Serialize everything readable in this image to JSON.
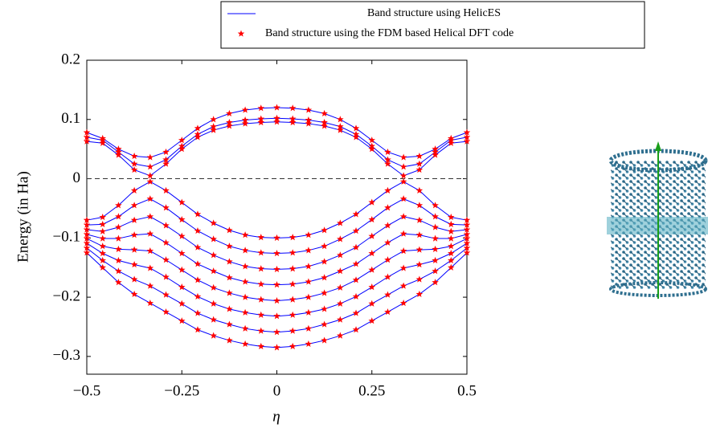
{
  "chart_data": {
    "type": "line",
    "xlabel": "η",
    "ylabel": "Energy (in Ha)",
    "xlim": [
      -0.5,
      0.5
    ],
    "ylim": [
      -0.33,
      0.2
    ],
    "xticks": [
      {
        "value": -0.5,
        "label": "−0.5"
      },
      {
        "value": -0.25,
        "label": "−0.25"
      },
      0,
      0.25,
      0.5
    ],
    "yticks": [
      0.2,
      0.1,
      0,
      {
        "value": -0.1,
        "label": "−0.1"
      },
      {
        "value": -0.2,
        "label": "−0.2"
      },
      {
        "value": -0.3,
        "label": "−0.3"
      }
    ],
    "x": [
      -0.5,
      -0.4583,
      -0.4167,
      -0.375,
      -0.3333,
      -0.2917,
      -0.25,
      -0.2083,
      -0.1667,
      -0.125,
      -0.0833,
      -0.0417,
      0,
      0.0417,
      0.0833,
      0.125,
      0.1667,
      0.2083,
      0.25,
      0.2917,
      0.3333,
      0.375,
      0.4167,
      0.4583,
      0.5
    ],
    "series": [
      {
        "name": "Band structure using HelicES",
        "color": "#0000ff",
        "style": "line",
        "bands": [
          [
            0.078,
            0.068,
            0.05,
            0.038,
            0.036,
            0.045,
            0.065,
            0.085,
            0.1,
            0.11,
            0.116,
            0.119,
            0.12,
            0.119,
            0.116,
            0.11,
            0.1,
            0.085,
            0.065,
            0.045,
            0.036,
            0.038,
            0.05,
            0.068,
            0.078
          ],
          [
            0.07,
            0.065,
            0.045,
            0.025,
            0.02,
            0.032,
            0.055,
            0.075,
            0.088,
            0.095,
            0.099,
            0.101,
            0.102,
            0.101,
            0.099,
            0.095,
            0.088,
            0.075,
            0.055,
            0.032,
            0.02,
            0.025,
            0.045,
            0.065,
            0.07
          ],
          [
            0.063,
            0.06,
            0.04,
            0.015,
            0.005,
            0.025,
            0.05,
            0.07,
            0.082,
            0.089,
            0.093,
            0.095,
            0.096,
            0.095,
            0.093,
            0.089,
            0.082,
            0.07,
            0.05,
            0.025,
            0.005,
            0.015,
            0.04,
            0.06,
            0.063
          ],
          [
            -0.07,
            -0.065,
            -0.045,
            -0.02,
            -0.005,
            -0.02,
            -0.04,
            -0.06,
            -0.075,
            -0.087,
            -0.095,
            -0.099,
            -0.1,
            -0.099,
            -0.095,
            -0.087,
            -0.075,
            -0.06,
            -0.04,
            -0.02,
            -0.005,
            -0.02,
            -0.045,
            -0.065,
            -0.07
          ],
          [
            -0.078,
            -0.077,
            -0.064,
            -0.045,
            -0.034,
            -0.049,
            -0.069,
            -0.088,
            -0.102,
            -0.114,
            -0.121,
            -0.125,
            -0.126,
            -0.125,
            -0.121,
            -0.114,
            -0.102,
            -0.088,
            -0.069,
            -0.049,
            -0.034,
            -0.045,
            -0.064,
            -0.077,
            -0.078
          ],
          [
            -0.086,
            -0.089,
            -0.082,
            -0.07,
            -0.064,
            -0.079,
            -0.097,
            -0.116,
            -0.129,
            -0.14,
            -0.148,
            -0.152,
            -0.153,
            -0.152,
            -0.148,
            -0.14,
            -0.129,
            -0.116,
            -0.097,
            -0.079,
            -0.064,
            -0.07,
            -0.082,
            -0.089,
            -0.086
          ],
          [
            -0.094,
            -0.101,
            -0.101,
            -0.095,
            -0.093,
            -0.108,
            -0.126,
            -0.144,
            -0.156,
            -0.167,
            -0.174,
            -0.178,
            -0.179,
            -0.178,
            -0.174,
            -0.167,
            -0.156,
            -0.144,
            -0.126,
            -0.108,
            -0.093,
            -0.095,
            -0.101,
            -0.101,
            -0.094
          ],
          [
            -0.101,
            -0.114,
            -0.119,
            -0.12,
            -0.122,
            -0.137,
            -0.154,
            -0.171,
            -0.184,
            -0.193,
            -0.2,
            -0.204,
            -0.206,
            -0.204,
            -0.2,
            -0.193,
            -0.184,
            -0.171,
            -0.154,
            -0.137,
            -0.122,
            -0.12,
            -0.119,
            -0.114,
            -0.101
          ],
          [
            -0.109,
            -0.126,
            -0.138,
            -0.145,
            -0.151,
            -0.166,
            -0.183,
            -0.199,
            -0.211,
            -0.22,
            -0.226,
            -0.23,
            -0.232,
            -0.23,
            -0.226,
            -0.22,
            -0.211,
            -0.199,
            -0.183,
            -0.166,
            -0.151,
            -0.145,
            -0.138,
            -0.126,
            -0.109
          ],
          [
            -0.117,
            -0.138,
            -0.156,
            -0.17,
            -0.181,
            -0.196,
            -0.211,
            -0.227,
            -0.238,
            -0.246,
            -0.253,
            -0.257,
            -0.259,
            -0.257,
            -0.253,
            -0.246,
            -0.238,
            -0.227,
            -0.211,
            -0.196,
            -0.181,
            -0.17,
            -0.156,
            -0.138,
            -0.117
          ],
          [
            -0.125,
            -0.15,
            -0.175,
            -0.195,
            -0.21,
            -0.225,
            -0.24,
            -0.255,
            -0.265,
            -0.273,
            -0.279,
            -0.283,
            -0.285,
            -0.283,
            -0.279,
            -0.273,
            -0.265,
            -0.255,
            -0.24,
            -0.225,
            -0.21,
            -0.195,
            -0.175,
            -0.15,
            -0.125
          ]
        ]
      },
      {
        "name": "Band structure using the FDM based Helical DFT code",
        "color": "#ff0000",
        "style": "star",
        "bands": [
          [
            0.078,
            0.068,
            0.05,
            0.038,
            0.036,
            0.045,
            0.065,
            0.085,
            0.1,
            0.11,
            0.116,
            0.119,
            0.12,
            0.119,
            0.116,
            0.11,
            0.1,
            0.085,
            0.065,
            0.045,
            0.036,
            0.038,
            0.05,
            0.068,
            0.078
          ],
          [
            0.07,
            0.065,
            0.045,
            0.025,
            0.02,
            0.032,
            0.055,
            0.075,
            0.088,
            0.095,
            0.099,
            0.101,
            0.102,
            0.101,
            0.099,
            0.095,
            0.088,
            0.075,
            0.055,
            0.032,
            0.02,
            0.025,
            0.045,
            0.065,
            0.07
          ],
          [
            0.063,
            0.06,
            0.04,
            0.015,
            0.005,
            0.025,
            0.05,
            0.07,
            0.082,
            0.089,
            0.093,
            0.095,
            0.096,
            0.095,
            0.093,
            0.089,
            0.082,
            0.07,
            0.05,
            0.025,
            0.005,
            0.015,
            0.04,
            0.06,
            0.063
          ],
          [
            -0.07,
            -0.065,
            -0.045,
            -0.02,
            -0.005,
            -0.02,
            -0.04,
            -0.06,
            -0.075,
            -0.087,
            -0.095,
            -0.099,
            -0.1,
            -0.099,
            -0.095,
            -0.087,
            -0.075,
            -0.06,
            -0.04,
            -0.02,
            -0.005,
            -0.02,
            -0.045,
            -0.065,
            -0.07
          ],
          [
            -0.078,
            -0.077,
            -0.064,
            -0.045,
            -0.034,
            -0.049,
            -0.069,
            -0.088,
            -0.102,
            -0.114,
            -0.121,
            -0.125,
            -0.126,
            -0.125,
            -0.121,
            -0.114,
            -0.102,
            -0.088,
            -0.069,
            -0.049,
            -0.034,
            -0.045,
            -0.064,
            -0.077,
            -0.078
          ],
          [
            -0.086,
            -0.089,
            -0.082,
            -0.07,
            -0.064,
            -0.079,
            -0.097,
            -0.116,
            -0.129,
            -0.14,
            -0.148,
            -0.152,
            -0.153,
            -0.152,
            -0.148,
            -0.14,
            -0.129,
            -0.116,
            -0.097,
            -0.079,
            -0.064,
            -0.07,
            -0.082,
            -0.089,
            -0.086
          ],
          [
            -0.094,
            -0.101,
            -0.101,
            -0.095,
            -0.093,
            -0.108,
            -0.126,
            -0.144,
            -0.156,
            -0.167,
            -0.174,
            -0.178,
            -0.179,
            -0.178,
            -0.174,
            -0.167,
            -0.156,
            -0.144,
            -0.126,
            -0.108,
            -0.093,
            -0.095,
            -0.101,
            -0.101,
            -0.094
          ],
          [
            -0.101,
            -0.114,
            -0.119,
            -0.12,
            -0.122,
            -0.137,
            -0.154,
            -0.171,
            -0.184,
            -0.193,
            -0.2,
            -0.204,
            -0.206,
            -0.204,
            -0.2,
            -0.193,
            -0.184,
            -0.171,
            -0.154,
            -0.137,
            -0.122,
            -0.12,
            -0.119,
            -0.114,
            -0.101
          ],
          [
            -0.109,
            -0.126,
            -0.138,
            -0.145,
            -0.151,
            -0.166,
            -0.183,
            -0.199,
            -0.211,
            -0.22,
            -0.226,
            -0.23,
            -0.232,
            -0.23,
            -0.226,
            -0.22,
            -0.211,
            -0.199,
            -0.183,
            -0.166,
            -0.151,
            -0.145,
            -0.138,
            -0.126,
            -0.109
          ],
          [
            -0.117,
            -0.138,
            -0.156,
            -0.17,
            -0.181,
            -0.196,
            -0.211,
            -0.227,
            -0.238,
            -0.246,
            -0.253,
            -0.257,
            -0.259,
            -0.257,
            -0.253,
            -0.246,
            -0.238,
            -0.227,
            -0.211,
            -0.196,
            -0.181,
            -0.17,
            -0.156,
            -0.138,
            -0.117
          ],
          [
            -0.125,
            -0.15,
            -0.175,
            -0.195,
            -0.21,
            -0.225,
            -0.24,
            -0.255,
            -0.265,
            -0.273,
            -0.279,
            -0.283,
            -0.285,
            -0.283,
            -0.279,
            -0.273,
            -0.265,
            -0.255,
            -0.24,
            -0.225,
            -0.21,
            -0.195,
            -0.175,
            -0.15,
            -0.125
          ]
        ]
      }
    ]
  }
}
